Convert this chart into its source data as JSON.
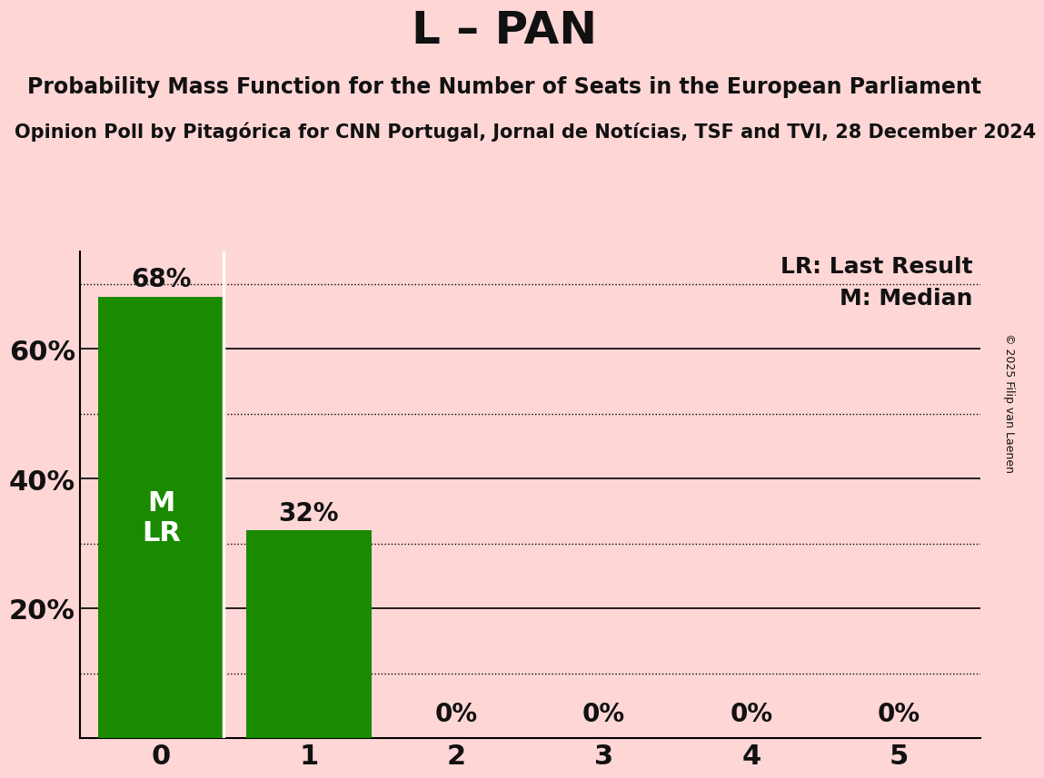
{
  "title": "L – PAN",
  "subtitle1": "Probability Mass Function for the Number of Seats in the European Parliament",
  "subtitle2": "Opinion Poll by Pitagórica for CNN Portugal, Jornal de Notícias, TSF and TVI, 28 December 2024",
  "copyright": "© 2025 Filip van Laenen",
  "categories": [
    0,
    1,
    2,
    3,
    4,
    5
  ],
  "values": [
    0.68,
    0.32,
    0.0,
    0.0,
    0.0,
    0.0
  ],
  "bar_color": "#1a8a00",
  "background_color": "#ffd6d6",
  "text_color": "#111111",
  "label_color_on_bar": "#ffffff",
  "bar_label_fontsize": 20,
  "ylim": [
    0,
    0.75
  ],
  "legend_lr": "LR: Last Result",
  "legend_m": "M: Median",
  "solid_gridlines": [
    0.2,
    0.4,
    0.6
  ],
  "dotted_gridlines": [
    0.1,
    0.3,
    0.5,
    0.7
  ],
  "title_fontsize": 36,
  "subtitle1_fontsize": 17,
  "subtitle2_fontsize": 15,
  "tick_fontsize": 22,
  "legend_fontsize": 18,
  "mlr_fontsize": 22
}
